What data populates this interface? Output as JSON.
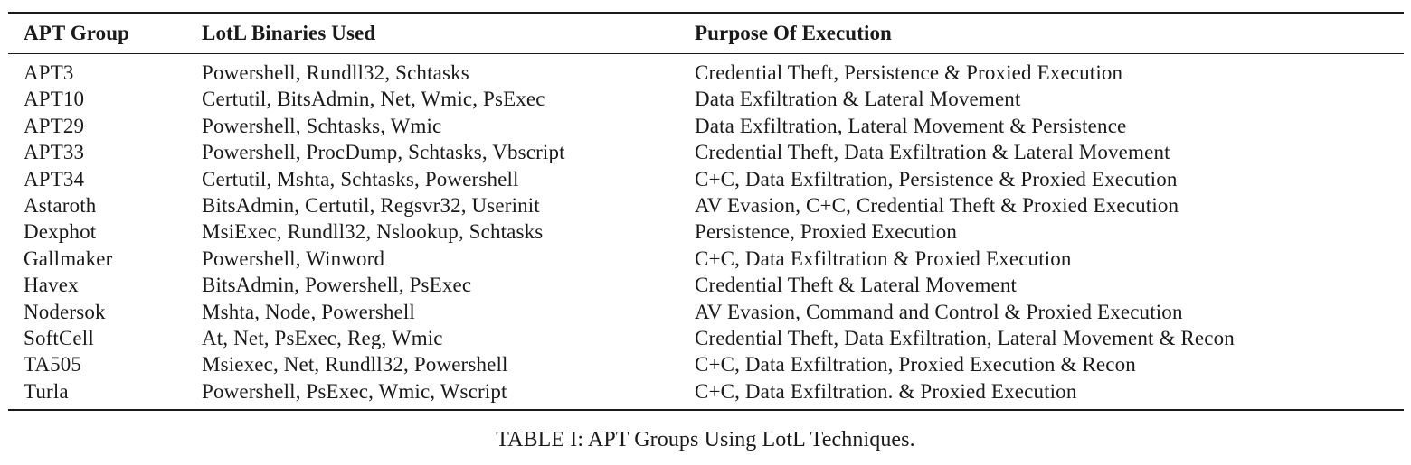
{
  "table": {
    "headers": [
      "APT Group",
      "LotL Binaries Used",
      "Purpose Of Execution"
    ],
    "rows": [
      [
        "APT3",
        "Powershell, Rundll32, Schtasks",
        "Credential Theft, Persistence & Proxied Execution"
      ],
      [
        "APT10",
        "Certutil, BitsAdmin, Net, Wmic, PsExec",
        "Data Exfiltration & Lateral Movement"
      ],
      [
        "APT29",
        "Powershell, Schtasks, Wmic",
        "Data Exfiltration, Lateral Movement & Persistence"
      ],
      [
        "APT33",
        "Powershell, ProcDump, Schtasks, Vbscript",
        "Credential Theft, Data Exfiltration & Lateral Movement"
      ],
      [
        "APT34",
        "Certutil, Mshta, Schtasks, Powershell",
        "C+C, Data Exfiltration, Persistence & Proxied Execution"
      ],
      [
        "Astaroth",
        "BitsAdmin, Certutil, Regsvr32, Userinit",
        "AV Evasion, C+C, Credential Theft & Proxied Execution"
      ],
      [
        "Dexphot",
        "MsiExec, Rundll32, Nslookup, Schtasks",
        "Persistence, Proxied Execution"
      ],
      [
        "Gallmaker",
        "Powershell, Winword",
        "C+C, Data Exfiltration & Proxied Execution"
      ],
      [
        "Havex",
        "BitsAdmin, Powershell, PsExec",
        "Credential Theft & Lateral Movement"
      ],
      [
        "Nodersok",
        "Mshta, Node, Powershell",
        "AV Evasion, Command and Control & Proxied Execution"
      ],
      [
        "SoftCell",
        "At, Net, PsExec, Reg, Wmic",
        "Credential Theft, Data Exfiltration, Lateral Movement & Recon"
      ],
      [
        "TA505",
        "Msiexec, Net, Rundll32, Powershell",
        "C+C, Data Exfiltration, Proxied Execution & Recon"
      ],
      [
        "Turla",
        "Powershell, PsExec, Wmic, Wscript",
        "C+C, Data Exfiltration. & Proxied Execution"
      ]
    ]
  },
  "caption": "TABLE I: APT Groups Using LotL Techniques."
}
